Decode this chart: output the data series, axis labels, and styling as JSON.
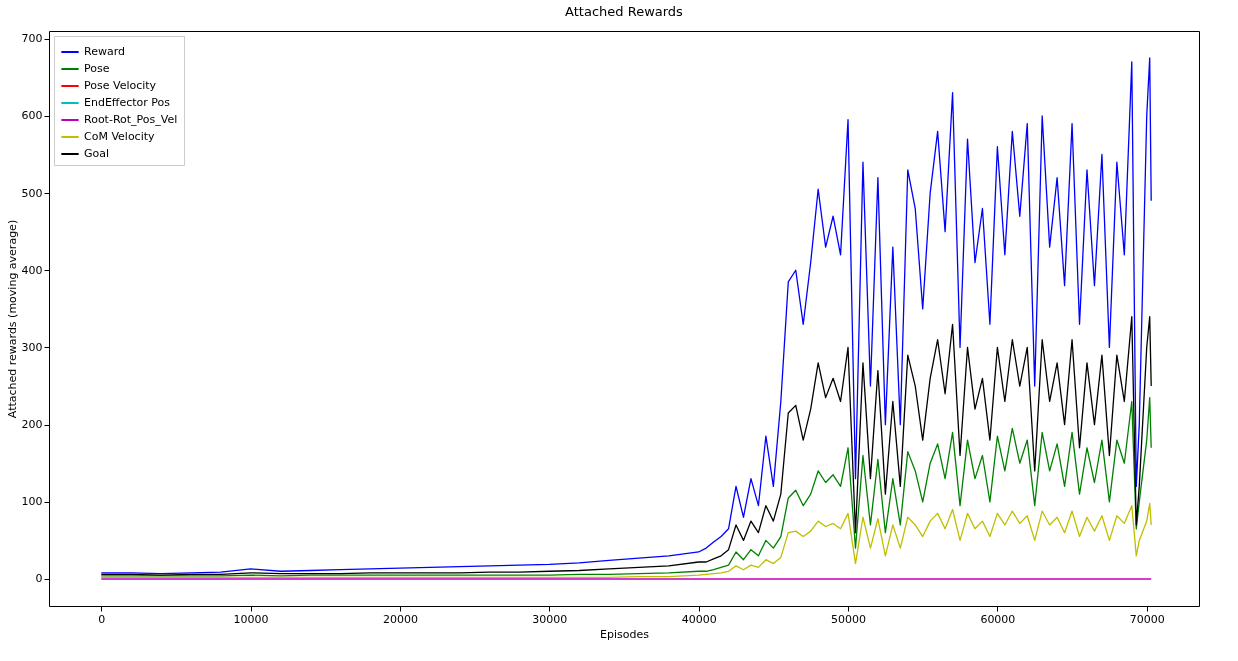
{
  "chart_data": {
    "type": "line",
    "title": "Attached Rewards",
    "xlabel": "Episodes",
    "ylabel": "Attached rewards (moving average)",
    "x": [
      0,
      2000,
      4000,
      6000,
      8000,
      10000,
      12000,
      14000,
      16000,
      18000,
      20000,
      22000,
      24000,
      26000,
      28000,
      30000,
      32000,
      34000,
      36000,
      38000,
      40000,
      40500,
      41000,
      41500,
      42000,
      42500,
      43000,
      43500,
      44000,
      44500,
      45000,
      45500,
      46000,
      46500,
      47000,
      47500,
      48000,
      48500,
      49000,
      49500,
      50000,
      50500,
      51000,
      51500,
      52000,
      52500,
      53000,
      53500,
      54000,
      54500,
      55000,
      55500,
      56000,
      56500,
      57000,
      57500,
      58000,
      58500,
      59000,
      59500,
      60000,
      60500,
      61000,
      61500,
      62000,
      62500,
      63000,
      63500,
      64000,
      64500,
      65000,
      65500,
      66000,
      66500,
      67000,
      67500,
      68000,
      68500,
      69000,
      69300,
      69500,
      70000,
      70200,
      70300
    ],
    "series": [
      {
        "name": "Reward",
        "color": "#0000ff",
        "values": [
          8,
          8,
          7,
          8,
          9,
          13,
          10,
          11,
          12,
          13,
          14,
          15,
          16,
          17,
          18,
          19,
          21,
          24,
          27,
          30,
          35,
          40,
          48,
          55,
          65,
          120,
          80,
          130,
          95,
          185,
          120,
          230,
          385,
          400,
          330,
          410,
          505,
          430,
          470,
          420,
          595,
          130,
          540,
          250,
          520,
          200,
          430,
          200,
          530,
          480,
          350,
          500,
          580,
          450,
          630,
          300,
          570,
          410,
          480,
          330,
          560,
          420,
          580,
          470,
          590,
          250,
          600,
          430,
          520,
          380,
          590,
          330,
          530,
          380,
          550,
          300,
          540,
          420,
          670,
          120,
          200,
          600,
          675,
          490
        ]
      },
      {
        "name": "Pose",
        "color": "#008000",
        "values": [
          4,
          4,
          4,
          4,
          4,
          5,
          4,
          5,
          5,
          5,
          5,
          5,
          5,
          5,
          5,
          5,
          6,
          6,
          7,
          8,
          10,
          10,
          12,
          15,
          18,
          35,
          25,
          38,
          30,
          50,
          40,
          55,
          105,
          115,
          95,
          110,
          140,
          125,
          135,
          120,
          170,
          40,
          160,
          70,
          155,
          60,
          130,
          70,
          165,
          140,
          100,
          150,
          175,
          130,
          190,
          95,
          180,
          130,
          160,
          100,
          185,
          140,
          195,
          150,
          180,
          95,
          190,
          140,
          175,
          120,
          190,
          110,
          170,
          125,
          180,
          100,
          180,
          150,
          230,
          65,
          100,
          180,
          235,
          170
        ]
      },
      {
        "name": "Pose Velocity",
        "color": "#ff0000",
        "values": [
          null,
          null,
          null,
          null,
          null,
          null,
          null,
          null,
          null,
          null,
          null,
          null,
          null,
          null,
          null,
          null,
          null,
          null,
          null,
          null,
          null,
          null,
          null,
          null,
          null,
          null,
          null,
          null,
          null,
          null,
          null,
          null,
          null,
          null,
          null,
          null,
          null,
          null,
          null,
          null,
          null,
          null,
          null,
          null,
          null,
          null,
          null,
          null,
          null,
          null,
          null,
          null,
          null,
          null,
          null,
          null,
          null,
          null,
          null,
          null,
          null,
          null,
          null,
          null,
          null,
          null,
          null,
          null,
          null,
          null,
          null,
          null,
          null,
          null,
          null,
          null,
          null,
          null,
          null,
          null,
          null,
          null,
          null,
          null
        ]
      },
      {
        "name": "EndEffector Pos",
        "color": "#00bfbf",
        "values": [
          null,
          null,
          null,
          null,
          null,
          null,
          null,
          null,
          null,
          null,
          null,
          null,
          null,
          null,
          null,
          null,
          null,
          null,
          null,
          null,
          null,
          null,
          null,
          null,
          null,
          null,
          null,
          null,
          null,
          null,
          null,
          null,
          null,
          null,
          null,
          null,
          null,
          null,
          null,
          null,
          null,
          null,
          null,
          null,
          null,
          null,
          null,
          null,
          null,
          null,
          null,
          null,
          null,
          null,
          null,
          null,
          null,
          null,
          null,
          null,
          null,
          null,
          null,
          null,
          null,
          null,
          null,
          null,
          null,
          null,
          null,
          null,
          null,
          null,
          null,
          null,
          null,
          null,
          null,
          null,
          null,
          null,
          null,
          null
        ]
      },
      {
        "name": "Root-Rot_Pos_Vel",
        "color": "#bf00bf",
        "values": [
          0,
          0,
          0,
          0,
          0,
          0,
          0,
          0,
          0,
          0,
          0,
          0,
          0,
          0,
          0,
          0,
          0,
          0,
          0,
          0,
          0,
          0,
          0,
          0,
          0,
          0,
          0,
          0,
          0,
          0,
          0,
          0,
          0,
          0,
          0,
          0,
          0,
          0,
          0,
          0,
          0,
          0,
          0,
          0,
          0,
          0,
          0,
          0,
          0,
          0,
          0,
          0,
          0,
          0,
          0,
          0,
          0,
          0,
          0,
          0,
          0,
          0,
          0,
          0,
          0,
          0,
          0,
          0,
          0,
          0,
          0,
          0,
          0,
          0,
          0,
          0,
          0,
          0,
          0,
          0,
          0,
          0,
          0,
          0
        ]
      },
      {
        "name": "CoM Velocity",
        "color": "#bfbf00",
        "values": [
          2,
          2,
          2,
          2,
          2,
          2,
          2,
          2,
          2,
          2,
          2,
          2,
          2,
          2,
          2,
          2,
          2,
          2,
          3,
          3,
          5,
          6,
          7,
          8,
          10,
          17,
          12,
          18,
          15,
          25,
          20,
          28,
          60,
          62,
          55,
          62,
          75,
          68,
          72,
          65,
          85,
          20,
          80,
          40,
          78,
          30,
          70,
          40,
          80,
          70,
          55,
          75,
          85,
          65,
          90,
          50,
          85,
          65,
          75,
          55,
          85,
          70,
          88,
          72,
          82,
          50,
          88,
          70,
          80,
          60,
          88,
          55,
          80,
          62,
          82,
          50,
          82,
          72,
          95,
          30,
          50,
          75,
          98,
          70
        ]
      },
      {
        "name": "Goal",
        "color": "#000000",
        "values": [
          6,
          6,
          5,
          6,
          6,
          8,
          7,
          7,
          7,
          8,
          8,
          8,
          8,
          9,
          9,
          10,
          11,
          13,
          15,
          17,
          22,
          22,
          26,
          30,
          38,
          70,
          50,
          75,
          60,
          95,
          75,
          110,
          215,
          225,
          180,
          220,
          280,
          235,
          260,
          230,
          300,
          60,
          280,
          130,
          270,
          110,
          230,
          120,
          290,
          250,
          180,
          260,
          310,
          240,
          330,
          160,
          300,
          220,
          260,
          180,
          300,
          230,
          310,
          250,
          300,
          140,
          310,
          230,
          280,
          200,
          310,
          170,
          280,
          200,
          290,
          160,
          290,
          230,
          340,
          70,
          120,
          300,
          340,
          250
        ]
      }
    ],
    "xlim": [
      -3500,
      73500
    ],
    "ylim": [
      -35,
      710
    ],
    "xticks": [
      0,
      10000,
      20000,
      30000,
      40000,
      50000,
      60000,
      70000
    ],
    "yticks": [
      0,
      100,
      200,
      300,
      400,
      500,
      600,
      700
    ],
    "grid": false,
    "legend": "top left",
    "marker": "none",
    "line_style": "solid"
  }
}
